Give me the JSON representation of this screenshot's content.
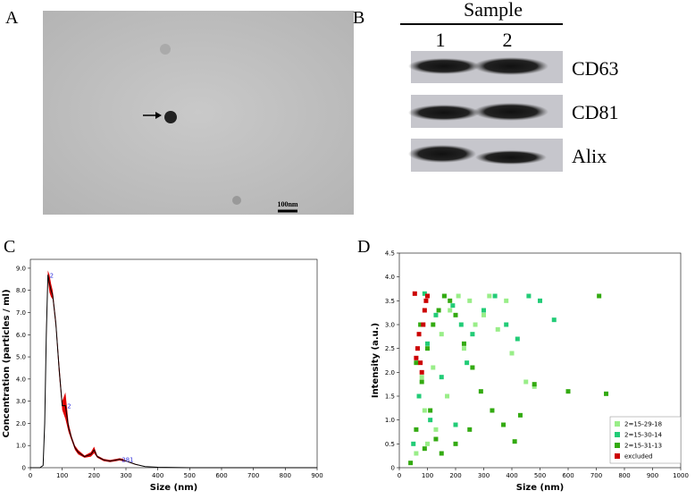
{
  "figure": {
    "panel_a": {
      "label": "A",
      "scale_bar": "100nm"
    },
    "panel_b": {
      "label": "B",
      "header": "Sample",
      "lanes": [
        "1",
        "2"
      ],
      "bands": [
        "CD63",
        "CD81",
        "Alix"
      ]
    },
    "panel_c_label": "C",
    "panel_d_label": "D"
  },
  "chart_data": [
    {
      "type": "line",
      "xlabel": "Size (nm)",
      "ylabel": "Concentration (particles / ml)",
      "x": [
        0,
        30,
        40,
        45,
        50,
        55,
        60,
        65,
        70,
        80,
        90,
        100,
        110,
        120,
        130,
        140,
        150,
        170,
        190,
        200,
        210,
        230,
        250,
        270,
        280,
        290,
        300,
        330,
        360,
        400,
        500,
        600,
        700,
        800,
        900
      ],
      "values": [
        0,
        0,
        0.1,
        2,
        6,
        8.7,
        8.3,
        8,
        7.8,
        6.5,
        4.5,
        2.8,
        2.8,
        1.8,
        1.3,
        0.9,
        0.7,
        0.5,
        0.6,
        0.8,
        0.5,
        0.35,
        0.3,
        0.35,
        0.38,
        0.35,
        0.3,
        0.15,
        0.05,
        0.02,
        0,
        0,
        0,
        0,
        0
      ],
      "error": [
        0,
        0,
        0,
        0.2,
        0.4,
        0.2,
        0.4,
        0.3,
        0.2,
        0.2,
        0.3,
        0.2,
        0.6,
        0.2,
        0.1,
        0.1,
        0.1,
        0.05,
        0.1,
        0.15,
        0.05,
        0.05,
        0.05,
        0.05,
        0.05,
        0.05,
        0.02,
        0.02,
        0,
        0,
        0,
        0,
        0,
        0,
        0
      ],
      "color": "#000000",
      "band_color": "#e00000",
      "annotations": [
        {
          "text": "2",
          "x": 55,
          "y": 8.7
        },
        {
          "text": "2",
          "x": 110,
          "y": 2.8
        },
        {
          "text": "281",
          "x": 281,
          "y": 0.38
        }
      ],
      "xlim": [
        0,
        900
      ],
      "xticks": [
        0,
        100,
        200,
        300,
        400,
        500,
        600,
        700,
        800,
        900
      ],
      "ylim": [
        0,
        9.4
      ],
      "yticks": [
        0,
        {
          "value": 1,
          "label": "1.0"
        },
        {
          "value": 2,
          "label": "2.0"
        },
        {
          "value": 3,
          "label": "3.0"
        },
        {
          "value": 4,
          "label": "4.0"
        },
        {
          "value": 5,
          "label": "5.0"
        },
        {
          "value": 6,
          "label": "6.0"
        },
        {
          "value": 7,
          "label": "7.0"
        },
        {
          "value": 8,
          "label": "8.0"
        },
        {
          "value": 9,
          "label": "9.0"
        }
      ]
    },
    {
      "type": "scatter",
      "xlabel": "Size (nm)",
      "ylabel": "Intensity (a.u.)",
      "legend": "lower right",
      "xlim": [
        0,
        1000
      ],
      "xticks": [
        0,
        100,
        200,
        300,
        400,
        500,
        600,
        700,
        800,
        900,
        1000
      ],
      "ylim": [
        0,
        4.5
      ],
      "yticks": [
        0,
        0.5,
        {
          "value": 1,
          "label": "1.0"
        },
        1.5,
        {
          "value": 2,
          "label": "2.0"
        },
        2.5,
        {
          "value": 3,
          "label": "3.0"
        },
        3.5,
        {
          "value": 4,
          "label": "4.0"
        },
        4.5
      ],
      "series": [
        {
          "name": "2=15-29-18",
          "color": "#99ee88",
          "x": [
            60,
            90,
            120,
            150,
            180,
            210,
            250,
            300,
            350,
            400,
            450,
            480,
            230,
            170,
            130,
            100,
            80,
            270,
            320,
            380
          ],
          "y": [
            0.3,
            1.2,
            2.1,
            2.8,
            3.3,
            3.6,
            3.5,
            3.2,
            2.9,
            2.4,
            1.8,
            1.7,
            2.5,
            1.5,
            0.8,
            0.5,
            1.9,
            3.0,
            3.6,
            3.5
          ]
        },
        {
          "name": "2=15-30-14",
          "color": "#22cc77",
          "x": [
            50,
            70,
            100,
            130,
            160,
            190,
            220,
            260,
            300,
            340,
            380,
            420,
            460,
            500,
            550,
            150,
            110,
            240,
            200,
            90
          ],
          "y": [
            0.5,
            1.5,
            2.6,
            3.2,
            3.6,
            3.4,
            3.0,
            2.8,
            3.3,
            3.6,
            3.0,
            2.7,
            3.6,
            3.5,
            3.1,
            1.9,
            1.0,
            2.2,
            0.9,
            3.65
          ]
        },
        {
          "name": "2=15-31-13",
          "color": "#33aa11",
          "x": [
            40,
            60,
            80,
            100,
            120,
            140,
            160,
            180,
            200,
            230,
            260,
            290,
            330,
            370,
            410,
            600,
            710,
            735,
            480,
            430,
            90,
            110,
            75,
            130,
            60,
            150,
            200,
            250
          ],
          "y": [
            0.1,
            0.8,
            1.8,
            2.5,
            3.0,
            3.3,
            3.6,
            3.5,
            3.2,
            2.6,
            2.1,
            1.6,
            1.2,
            0.9,
            0.55,
            1.6,
            3.6,
            1.55,
            1.75,
            1.1,
            0.4,
            1.2,
            3.0,
            0.6,
            2.2,
            0.3,
            0.5,
            0.8
          ]
        },
        {
          "name": "excluded",
          "color": "#cc0000",
          "x": [
            55,
            60,
            65,
            70,
            75,
            80,
            85,
            90,
            95,
            100
          ],
          "y": [
            3.65,
            2.3,
            2.5,
            2.8,
            2.2,
            2.0,
            3.0,
            3.3,
            3.5,
            3.6
          ]
        }
      ]
    }
  ]
}
